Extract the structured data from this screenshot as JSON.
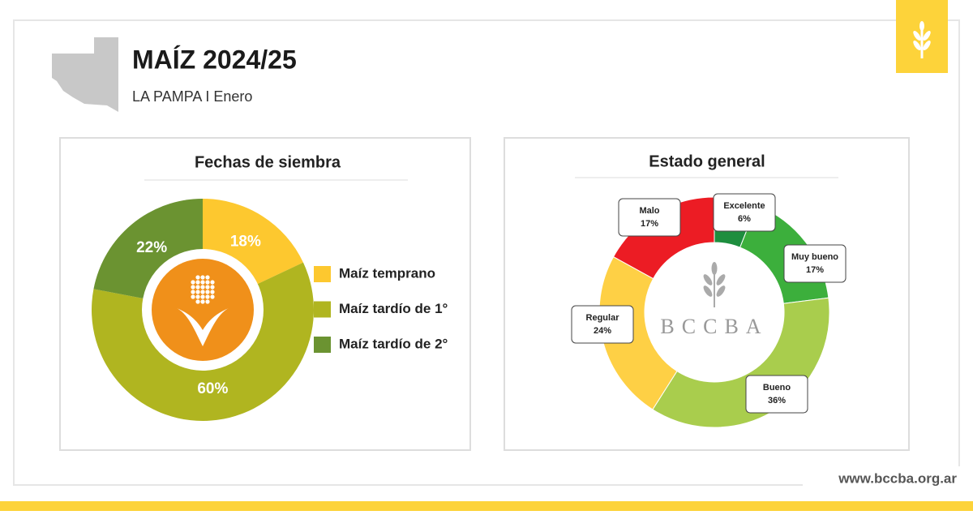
{
  "header": {
    "title": "MAÍZ 2024/25",
    "subtitle": "LA PAMPA I Enero"
  },
  "watermark": "BCCBA",
  "footer": {
    "url": "www.bccba.org.ar"
  },
  "chart_data": [
    {
      "type": "pie",
      "title": "Fechas de siembra",
      "categories": [
        "Maíz temprano",
        "Maíz tardío de 1°",
        "Maíz tardío de 2°"
      ],
      "values": [
        18,
        60,
        22
      ],
      "value_labels": [
        "18%",
        "60%",
        "22%"
      ],
      "colors": [
        "#fdc82f",
        "#b0b520",
        "#6b9331"
      ]
    },
    {
      "type": "donut",
      "title": "Estado general",
      "categories": [
        "Excelente",
        "Muy bueno",
        "Bueno",
        "Regular",
        "Malo"
      ],
      "values": [
        6,
        17,
        36,
        24,
        17
      ],
      "value_labels": [
        "6%",
        "17%",
        "36%",
        "24%",
        "17%"
      ],
      "colors": [
        "#1e8e3e",
        "#3caf3c",
        "#a9cd4d",
        "#fed045",
        "#ec1c24"
      ]
    }
  ]
}
